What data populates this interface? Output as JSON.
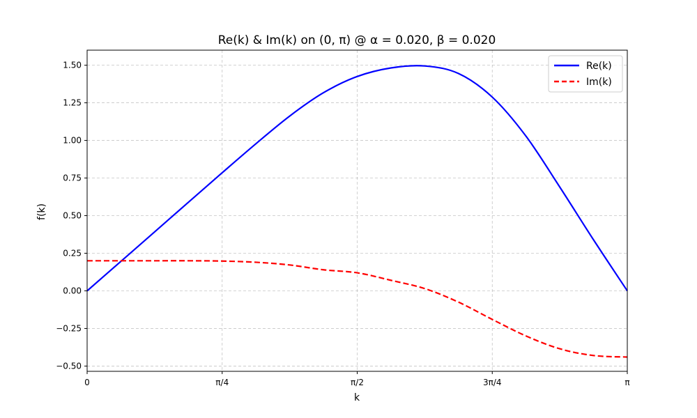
{
  "chart_data": {
    "type": "line",
    "title": "Re(k) & Im(k) on (0, π) @ α = 0.020, β = 0.020",
    "xlabel": "k",
    "ylabel": "f(k)",
    "xlim": [
      0,
      3.14159265
    ],
    "ylim": [
      -0.535,
      1.6
    ],
    "grid": true,
    "legend_position": "top-right",
    "x_ticks": [
      {
        "value": 0,
        "label": "0"
      },
      {
        "value": 0.78539816,
        "label": "π/4"
      },
      {
        "value": 1.57079633,
        "label": "π/2"
      },
      {
        "value": 2.35619449,
        "label": "3π/4"
      },
      {
        "value": 3.14159265,
        "label": "π"
      }
    ],
    "y_ticks": [
      {
        "value": -0.5,
        "label": "−0.50"
      },
      {
        "value": -0.25,
        "label": "−0.25"
      },
      {
        "value": 0.0,
        "label": "0.00"
      },
      {
        "value": 0.25,
        "label": "0.25"
      },
      {
        "value": 0.5,
        "label": "0.50"
      },
      {
        "value": 0.75,
        "label": "0.75"
      },
      {
        "value": 1.0,
        "label": "1.00"
      },
      {
        "value": 1.25,
        "label": "1.25"
      },
      {
        "value": 1.5,
        "label": "1.50"
      }
    ],
    "x": [
      0,
      0.19635,
      0.3927,
      0.58905,
      0.7854,
      0.98175,
      1.1781,
      1.37445,
      1.5708,
      1.76715,
      1.9635,
      2.15985,
      2.3562,
      2.55255,
      2.7489,
      2.94525,
      3.14159
    ],
    "series": [
      {
        "name": "Re(k)",
        "color": "#0000ff",
        "style": "solid",
        "values": [
          0.0,
          0.196,
          0.392,
          0.589,
          0.785,
          0.978,
          1.162,
          1.317,
          1.425,
          1.482,
          1.495,
          1.445,
          1.288,
          1.028,
          0.69,
          0.339,
          0.0
        ]
      },
      {
        "name": "Im(k)",
        "color": "#ff0000",
        "style": "dashed",
        "values": [
          0.2,
          0.2,
          0.2,
          0.2,
          0.198,
          0.19,
          0.172,
          0.14,
          0.12,
          0.07,
          0.015,
          -0.075,
          -0.19,
          -0.3,
          -0.385,
          -0.43,
          -0.44
        ]
      }
    ]
  }
}
